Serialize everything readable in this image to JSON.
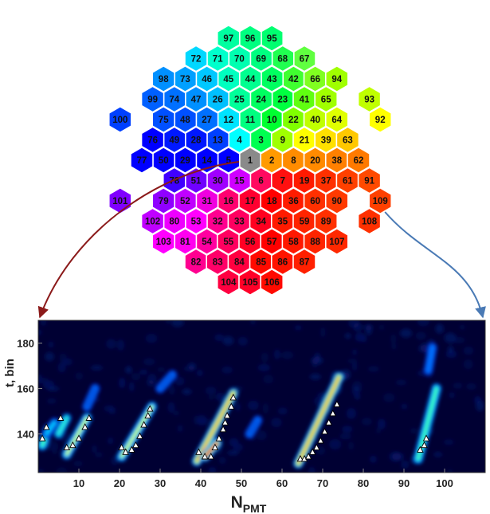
{
  "hex_map": {
    "labels": {
      "1": [
        0,
        0
      ],
      "2": [
        1,
        0
      ],
      "3": [
        0,
        -1
      ],
      "4": [
        -1,
        -1
      ],
      "5": [
        -1,
        0
      ],
      "6": [
        0,
        1
      ],
      "7": [
        1,
        1
      ],
      "8": [
        2,
        0
      ],
      "9": [
        1,
        -1
      ],
      "10": [
        1,
        -2
      ],
      "11": [
        0,
        -2
      ],
      "12": [
        -1,
        -2
      ],
      "13": [
        -2,
        -1
      ],
      "14": [
        -2,
        0
      ],
      "15": [
        -1,
        1
      ],
      "16": [
        -1,
        2
      ],
      "17": [
        0,
        2
      ],
      "18": [
        1,
        2
      ],
      "19": [
        2,
        1
      ],
      "20": [
        3,
        0
      ],
      "21": [
        2,
        -1
      ],
      "22": [
        2,
        -2
      ],
      "23": [
        1,
        -3
      ],
      "24": [
        0,
        -3
      ],
      "25": [
        -1,
        -3
      ],
      "26": [
        -2,
        -3
      ],
      "27": [
        -2,
        -2
      ],
      "28": [
        -3,
        -1
      ],
      "29": [
        -3,
        0
      ],
      "30": [
        -2,
        1
      ],
      "31": [
        -2,
        2
      ],
      "32": [
        -2,
        3
      ],
      "33": [
        -1,
        3
      ],
      "34": [
        0,
        3
      ],
      "35": [
        1,
        3
      ],
      "36": [
        2,
        2
      ],
      "37": [
        3,
        1
      ],
      "38": [
        4,
        0
      ],
      "39": [
        3,
        -1
      ],
      "40": [
        3,
        -2
      ],
      "41": [
        2,
        -3
      ],
      "42": [
        2,
        -4
      ],
      "43": [
        1,
        -4
      ],
      "44": [
        0,
        -4
      ],
      "45": [
        -1,
        -4
      ],
      "46": [
        -2,
        -4
      ],
      "47": [
        -3,
        -3
      ],
      "48": [
        -3,
        -2
      ],
      "49": [
        -4,
        -1
      ],
      "50": [
        -4,
        0
      ],
      "51": [
        -3,
        1
      ],
      "52": [
        -3,
        2
      ],
      "53": [
        -3,
        3
      ],
      "54": [
        -2,
        4
      ],
      "55": [
        -1,
        4
      ],
      "56": [
        0,
        4
      ],
      "57": [
        1,
        4
      ],
      "58": [
        2,
        4
      ],
      "59": [
        2,
        3
      ],
      "60": [
        3,
        2
      ],
      "61": [
        4,
        1
      ],
      "62": [
        5,
        0
      ],
      "63": [
        4,
        -1
      ],
      "64": [
        4,
        -2
      ],
      "65": [
        3,
        -3
      ],
      "66": [
        3,
        -4
      ],
      "67": [
        2,
        -5
      ],
      "68": [
        1,
        -5
      ],
      "69": [
        0,
        -5
      ],
      "70": [
        -1,
        -5
      ],
      "71": [
        -2,
        -5
      ],
      "72": [
        -3,
        -5
      ],
      "73": [
        -3,
        -4
      ],
      "74": [
        -4,
        -3
      ],
      "75": [
        -4,
        -2
      ],
      "76": [
        -5,
        -1
      ],
      "77": [
        -5,
        0
      ],
      "78": [
        -4,
        1
      ],
      "79": [
        -4,
        2
      ],
      "80": [
        -4,
        3
      ],
      "81": [
        -3,
        4
      ],
      "82": [
        -3,
        5
      ],
      "83": [
        -2,
        5
      ],
      "84": [
        -1,
        5
      ],
      "85": [
        0,
        5
      ],
      "86": [
        1,
        5
      ],
      "87": [
        2,
        5
      ],
      "88": [
        3,
        4
      ],
      "89": [
        3,
        3
      ],
      "90": [
        4,
        2
      ],
      "91": [
        5,
        1
      ],
      "92": [
        6,
        -2
      ],
      "93": [
        5,
        -3
      ],
      "94": [
        4,
        -4
      ],
      "95": [
        1,
        -6
      ],
      "96": [
        0,
        -6
      ],
      "97": [
        -1,
        -6
      ],
      "98": [
        -4,
        -4
      ],
      "99": [
        -5,
        -3
      ],
      "100": [
        -6,
        -2
      ],
      "101": [
        -6,
        2
      ],
      "102": [
        -5,
        3
      ],
      "103": [
        -4,
        4
      ],
      "104": [
        -1,
        6
      ],
      "105": [
        0,
        6
      ],
      "106": [
        1,
        6
      ],
      "107": [
        4,
        4
      ],
      "108": [
        5,
        3
      ],
      "109": [
        6,
        2
      ]
    },
    "colors": {
      "1": "#8a8a8a",
      "2": "#ff9a00",
      "8": "#ff8c00",
      "20": "#ff8a00",
      "38": "#ff8000",
      "62": "#ff7a00",
      "7": "#ff1010",
      "18": "#ff0000",
      "19": "#ff1a00",
      "35": "#ff1a00",
      "36": "#ff1c00",
      "37": "#ff3000",
      "57": "#ff0000",
      "58": "#ff1800",
      "59": "#ff2400",
      "60": "#ff3000",
      "61": "#ff4000",
      "85": "#ff0a00",
      "86": "#ff1400",
      "87": "#ff2000",
      "88": "#ff2400",
      "89": "#ff3000",
      "90": "#ff3a00",
      "91": "#ff4a00",
      "106": "#ff0a00",
      "107": "#ff2800",
      "108": "#ff3000",
      "109": "#ff4000",
      "17": "#ff0030",
      "34": "#ff0020",
      "56": "#ff0024",
      "105": "#ff0028",
      "104": "#ff0040",
      "84": "#ff0040",
      "6": "#ff0a60",
      "16": "#ff0070",
      "33": "#ff0060",
      "55": "#ff0060",
      "83": "#ff0068",
      "32": "#ff0090",
      "54": "#ff00a0",
      "82": "#ff0090",
      "15": "#d000ff",
      "31": "#f000e0",
      "53": "#ff00ff",
      "81": "#ff00f0",
      "103": "#ff00ff",
      "80": "#ee00ff",
      "52": "#c000ff",
      "30": "#a000ff",
      "51": "#7000ff",
      "79": "#9000ff",
      "102": "#c000ff",
      "101": "#8000ff",
      "78": "#4000ff",
      "5": "#0000ff",
      "14": "#0000ff",
      "29": "#0000ff",
      "50": "#0000ff",
      "77": "#0000ff",
      "28": "#0018ff",
      "49": "#0018ff",
      "76": "#0000ff",
      "13": "#0040ff",
      "4": "#00ffff",
      "12": "#00e4ff",
      "27": "#0070ff",
      "48": "#0050ff",
      "75": "#0050ff",
      "100": "#0040ff",
      "26": "#00c0ff",
      "47": "#0090ff",
      "74": "#0070ff",
      "99": "#0060ff",
      "46": "#00c8ff",
      "73": "#00a0ff",
      "98": "#0090ff",
      "72": "#00d8ff",
      "3": "#00ff50",
      "11": "#00ff80",
      "25": "#00ff9a",
      "45": "#00ffc0",
      "71": "#00ffcc",
      "97": "#00ffa0",
      "70": "#00ffb0",
      "96": "#00ff80",
      "44": "#00ff90",
      "24": "#00ff60",
      "69": "#00ff80",
      "95": "#00ff70",
      "43": "#00ff60",
      "23": "#00ff40",
      "10": "#00ff30",
      "68": "#20ff50",
      "42": "#40ff30",
      "67": "#60ff40",
      "66": "#80ff20",
      "22": "#80ff00",
      "41": "#60ff10",
      "9": "#a0ff00",
      "94": "#a0ff00",
      "65": "#a0ff00",
      "40": "#c0ff00",
      "93": "#c0ff00",
      "64": "#e0ff00",
      "92": "#ffff00",
      "21": "#ffff00",
      "39": "#ffe000",
      "63": "#ffc800"
    }
  },
  "arrows": [
    {
      "from_pmt": "1",
      "color": "#8b1a1a"
    },
    {
      "from_pmt": "109",
      "color": "#4a7ab5"
    }
  ],
  "chart_data": {
    "type": "heatmap",
    "xlabel": "N",
    "xlabel_sub": "PMT",
    "ylabel": "t, bin",
    "xlim": [
      0,
      110
    ],
    "ylim": [
      123,
      190
    ],
    "xticks": [
      10,
      20,
      30,
      40,
      50,
      60,
      70,
      80,
      90,
      100
    ],
    "yticks": [
      140,
      160,
      180
    ],
    "background_color": "#000033",
    "colormap": [
      "#000040",
      "#0020c0",
      "#0070ff",
      "#00d0ff",
      "#40ffb0",
      "#ffff00",
      "#ff8000",
      "#ff0000"
    ],
    "streaks": [
      {
        "x0": 1,
        "t0": 135,
        "x1": 2.5,
        "t1": 142,
        "intensity": 0.55
      },
      {
        "x0": 2,
        "t0": 140,
        "x1": 4,
        "t1": 145,
        "intensity": 0.45
      },
      {
        "x0": 5,
        "t0": 140,
        "x1": 7,
        "t1": 147,
        "intensity": 0.5
      },
      {
        "x0": 7,
        "t0": 131,
        "x1": 12,
        "t1": 147,
        "intensity": 0.65
      },
      {
        "x0": 20.5,
        "t0": 130,
        "x1": 28,
        "t1": 152,
        "intensity": 0.7
      },
      {
        "x0": 39,
        "t0": 128,
        "x1": 48,
        "t1": 158,
        "intensity": 0.85
      },
      {
        "x0": 41,
        "t0": 130,
        "x1": 44,
        "t1": 136,
        "intensity": 1.0
      },
      {
        "x0": 64,
        "t0": 127,
        "x1": 74,
        "t1": 165,
        "intensity": 0.9
      },
      {
        "x0": 93.5,
        "t0": 129,
        "x1": 98,
        "t1": 160,
        "intensity": 0.6
      },
      {
        "x0": 96,
        "t0": 168,
        "x1": 97,
        "t1": 178,
        "intensity": 0.25
      },
      {
        "x0": 12,
        "t0": 152,
        "x1": 14,
        "t1": 160,
        "intensity": 0.2
      },
      {
        "x0": 30,
        "t0": 160,
        "x1": 33,
        "t1": 166,
        "intensity": 0.2
      },
      {
        "x0": 52,
        "t0": 140,
        "x1": 54,
        "t1": 146,
        "intensity": 0.2
      }
    ],
    "markers": [
      {
        "x": 1,
        "t": 138
      },
      {
        "x": 2,
        "t": 143
      },
      {
        "x": 5.5,
        "t": 147
      },
      {
        "x": 7,
        "t": 134
      },
      {
        "x": 8.5,
        "t": 135
      },
      {
        "x": 10,
        "t": 138
      },
      {
        "x": 11.5,
        "t": 143
      },
      {
        "x": 12.5,
        "t": 147
      },
      {
        "x": 20.5,
        "t": 134
      },
      {
        "x": 21.5,
        "t": 132
      },
      {
        "x": 23,
        "t": 133
      },
      {
        "x": 24,
        "t": 135
      },
      {
        "x": 25,
        "t": 139
      },
      {
        "x": 26,
        "t": 144
      },
      {
        "x": 27,
        "t": 148
      },
      {
        "x": 27.5,
        "t": 151
      },
      {
        "x": 39.5,
        "t": 132
      },
      {
        "x": 41,
        "t": 130
      },
      {
        "x": 42.5,
        "t": 130
      },
      {
        "x": 43.5,
        "t": 134
      },
      {
        "x": 44.5,
        "t": 138
      },
      {
        "x": 45.5,
        "t": 142
      },
      {
        "x": 46,
        "t": 145
      },
      {
        "x": 46.5,
        "t": 148
      },
      {
        "x": 47.5,
        "t": 152
      },
      {
        "x": 48,
        "t": 156
      },
      {
        "x": 64.5,
        "t": 129
      },
      {
        "x": 65.5,
        "t": 129
      },
      {
        "x": 66.5,
        "t": 130
      },
      {
        "x": 67.5,
        "t": 132
      },
      {
        "x": 68.5,
        "t": 134
      },
      {
        "x": 69.5,
        "t": 137
      },
      {
        "x": 70.5,
        "t": 141
      },
      {
        "x": 71.5,
        "t": 145
      },
      {
        "x": 72.5,
        "t": 149
      },
      {
        "x": 73.5,
        "t": 153
      },
      {
        "x": 94,
        "t": 133
      },
      {
        "x": 95,
        "t": 135
      },
      {
        "x": 95.5,
        "t": 138
      }
    ]
  }
}
